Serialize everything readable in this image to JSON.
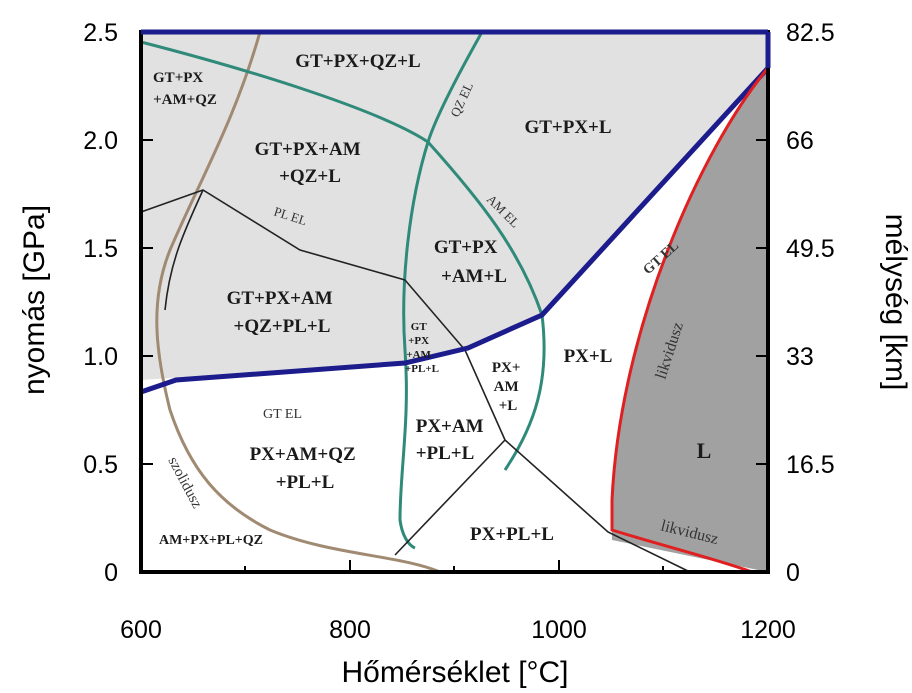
{
  "diagram": {
    "x_axis": {
      "title": "Hőmérséklet   [°C]",
      "ticks": [
        "600",
        "800",
        "1000",
        "1200"
      ]
    },
    "y_axis_left": {
      "title": "nyomás  [GPa]",
      "ticks": [
        "0",
        "0.5",
        "1.0",
        "1.5",
        "2.0",
        "2.5"
      ]
    },
    "y_axis_right": {
      "title": "mélység  [km]",
      "ticks": [
        "0",
        "16.5",
        "33",
        "49.5",
        "66",
        "82.5"
      ]
    },
    "fields": {
      "gt_px_am_qz": [
        "GT+PX",
        "+AM+QZ"
      ],
      "gt_px_qz_l": "GT+PX+QZ+L",
      "gt_px_l": "GT+PX+L",
      "gt_px_am_qz_l": [
        "GT+PX+AM",
        "+QZ+L"
      ],
      "gt_px_am_l": [
        "GT+PX",
        "+AM+L"
      ],
      "gt_px_am_qz_pl_l": [
        "GT+PX+AM",
        "+QZ+PL+L"
      ],
      "gt_px_am_pl_l_small": [
        "GT",
        "+PX",
        "+AM",
        "+PL+L"
      ],
      "px_am_l": [
        "PX+",
        "AM",
        "+L"
      ],
      "px_l": "PX+L",
      "l": "L",
      "px_am_qz_pl_l": [
        "PX+AM+QZ",
        "+PL+L"
      ],
      "px_am_pl_l": [
        "PX+AM",
        "+PL+L"
      ],
      "px_pl_l": "PX+PL+L",
      "am_px_pl_qz": "AM+PX+PL+QZ"
    },
    "curve_labels": {
      "qz_el": "QZ  EL",
      "am_el": "AM  EL",
      "pl_el": "PL  EL",
      "gt_el_upper": "GT  EL",
      "gt_el_lower": "GT  EL",
      "likvidusz_upper": "likvidusz",
      "likvidusz_lower": "likvidusz",
      "szolidusz": "szolidusz"
    },
    "colors": {
      "gt_stable_fill": "#e1e1e1",
      "liquid_fill": "#a1a1a1",
      "gt_el_line": "#1c1c8c",
      "hornblende_line": "#2f8a7a",
      "solidus_line": "#a08a72",
      "liquidus_line": "#e02020",
      "reaction_line": "#222222"
    }
  }
}
